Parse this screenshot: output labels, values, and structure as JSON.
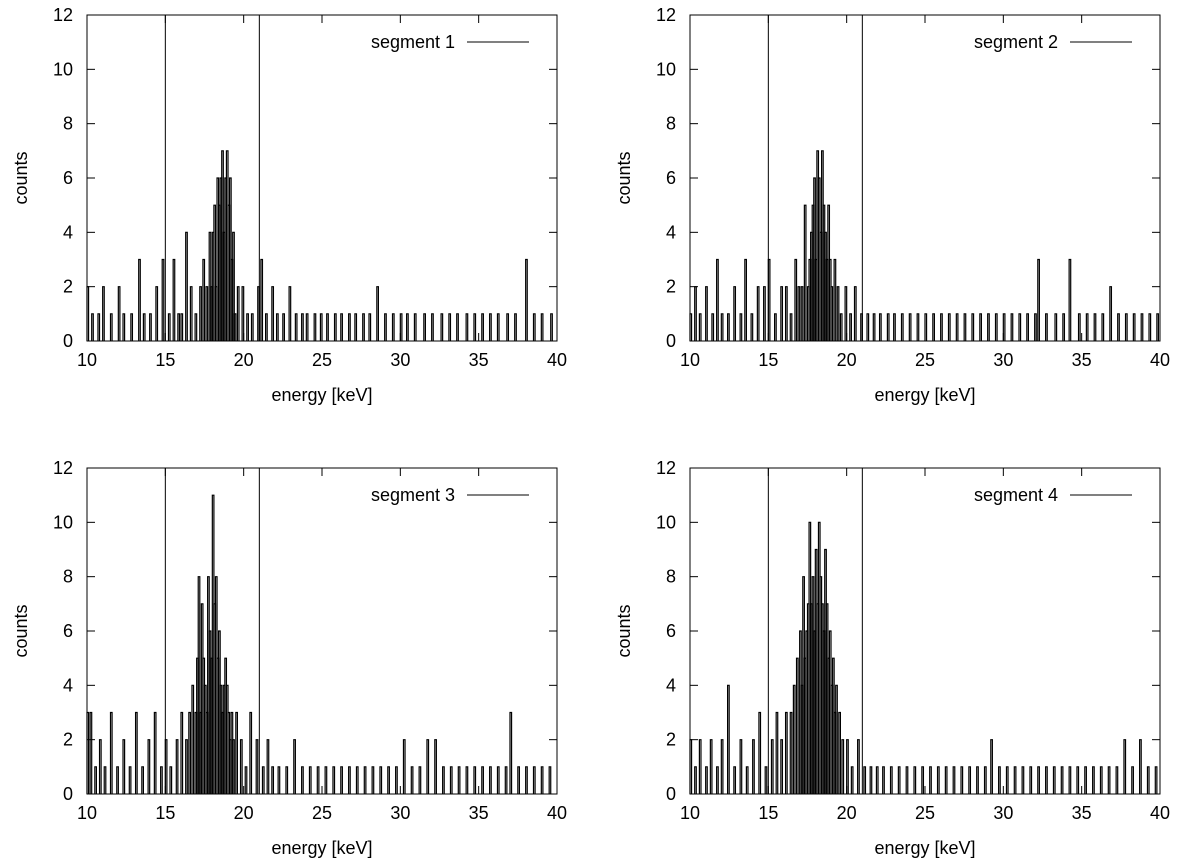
{
  "chart_data": [
    {
      "type": "histogram",
      "panel": "top-left",
      "xlabel": "energy [keV]",
      "ylabel": "counts",
      "xlim": [
        10,
        40
      ],
      "ylim": [
        0,
        12
      ],
      "xticks": [
        10,
        15,
        20,
        25,
        30,
        35,
        40
      ],
      "yticks": [
        0,
        2,
        4,
        6,
        8,
        10,
        12
      ],
      "vlines": [
        15,
        21
      ],
      "legend": "top-right",
      "series": [
        {
          "name": "segment 1",
          "color": "#000000"
        }
      ],
      "x": [
        10.0,
        10.3,
        10.7,
        11.0,
        11.5,
        12.0,
        12.3,
        12.8,
        13.3,
        13.6,
        14.0,
        14.4,
        14.8,
        15.2,
        15.5,
        15.8,
        16.0,
        16.3,
        16.6,
        16.9,
        17.2,
        17.4,
        17.6,
        17.8,
        17.9,
        18.0,
        18.1,
        18.2,
        18.3,
        18.4,
        18.5,
        18.6,
        18.7,
        18.8,
        18.9,
        19.0,
        19.1,
        19.2,
        19.3,
        19.4,
        19.6,
        19.9,
        20.2,
        20.5,
        20.9,
        21.1,
        21.4,
        21.8,
        22.1,
        22.5,
        22.9,
        23.3,
        23.7,
        24.0,
        24.5,
        24.9,
        25.3,
        25.8,
        26.2,
        26.7,
        27.1,
        27.6,
        28.0,
        28.5,
        29.0,
        29.5,
        30.0,
        30.4,
        30.9,
        31.5,
        32.0,
        32.6,
        33.1,
        33.6,
        34.2,
        34.7,
        35.2,
        35.7,
        36.2,
        36.8,
        37.3,
        38.0,
        38.5,
        39.0,
        39.6
      ],
      "counts": [
        2,
        1,
        1,
        2,
        1,
        2,
        1,
        1,
        3,
        1,
        1,
        2,
        3,
        1,
        3,
        1,
        1,
        4,
        2,
        1,
        2,
        3,
        2,
        4,
        2,
        4,
        5,
        2,
        6,
        5,
        6,
        7,
        4,
        6,
        7,
        5,
        6,
        3,
        4,
        1,
        2,
        2,
        1,
        1,
        2,
        3,
        1,
        2,
        1,
        1,
        2,
        1,
        1,
        1,
        1,
        1,
        1,
        1,
        1,
        1,
        1,
        1,
        1,
        2,
        1,
        1,
        1,
        1,
        1,
        1,
        1,
        1,
        1,
        1,
        1,
        1,
        1,
        1,
        1,
        1,
        1,
        3,
        1,
        1,
        1
      ]
    },
    {
      "type": "histogram",
      "panel": "top-right",
      "xlabel": "energy [keV]",
      "ylabel": "counts",
      "xlim": [
        10,
        40
      ],
      "ylim": [
        0,
        12
      ],
      "xticks": [
        10,
        15,
        20,
        25,
        30,
        35,
        40
      ],
      "yticks": [
        0,
        2,
        4,
        6,
        8,
        10,
        12
      ],
      "vlines": [
        15,
        21
      ],
      "legend": "top-right",
      "series": [
        {
          "name": "segment 2",
          "color": "#000000"
        }
      ],
      "x": [
        10.0,
        10.3,
        10.6,
        11.0,
        11.4,
        11.7,
        12.0,
        12.4,
        12.8,
        13.2,
        13.5,
        13.9,
        14.3,
        14.7,
        15.0,
        15.4,
        15.8,
        16.1,
        16.4,
        16.7,
        16.9,
        17.1,
        17.3,
        17.5,
        17.6,
        17.7,
        17.8,
        17.9,
        18.0,
        18.1,
        18.2,
        18.3,
        18.4,
        18.5,
        18.6,
        18.7,
        18.8,
        18.9,
        19.0,
        19.2,
        19.4,
        19.6,
        19.9,
        20.2,
        20.5,
        20.9,
        21.3,
        21.7,
        22.1,
        22.6,
        23.0,
        23.5,
        24.0,
        24.5,
        25.0,
        25.5,
        26.0,
        26.5,
        27.0,
        27.5,
        28.0,
        28.5,
        29.0,
        29.5,
        30.0,
        30.5,
        31.0,
        31.5,
        32.0,
        32.2,
        32.7,
        33.3,
        33.8,
        34.2,
        34.8,
        35.3,
        35.8,
        36.3,
        36.8,
        37.3,
        37.8,
        38.3,
        38.8,
        39.3,
        39.8
      ],
      "counts": [
        1,
        2,
        1,
        2,
        1,
        3,
        1,
        1,
        2,
        1,
        3,
        1,
        2,
        2,
        3,
        1,
        2,
        2,
        1,
        3,
        2,
        2,
        5,
        2,
        3,
        4,
        5,
        6,
        3,
        7,
        6,
        4,
        7,
        5,
        4,
        3,
        5,
        3,
        2,
        3,
        2,
        1,
        2,
        1,
        2,
        1,
        1,
        1,
        1,
        1,
        1,
        1,
        1,
        1,
        1,
        1,
        1,
        1,
        1,
        1,
        1,
        1,
        1,
        1,
        1,
        1,
        1,
        1,
        1,
        3,
        1,
        1,
        1,
        3,
        1,
        1,
        1,
        1,
        2,
        1,
        1,
        1,
        1,
        1,
        1
      ]
    },
    {
      "type": "histogram",
      "panel": "bottom-left",
      "xlabel": "energy [keV]",
      "ylabel": "counts",
      "xlim": [
        10,
        40
      ],
      "ylim": [
        0,
        12
      ],
      "xticks": [
        10,
        15,
        20,
        25,
        30,
        35,
        40
      ],
      "yticks": [
        0,
        2,
        4,
        6,
        8,
        10,
        12
      ],
      "vlines": [
        15,
        21
      ],
      "legend": "top-right",
      "series": [
        {
          "name": "segment 3",
          "color": "#000000"
        }
      ],
      "x": [
        10.0,
        10.2,
        10.5,
        10.8,
        11.1,
        11.5,
        11.9,
        12.3,
        12.7,
        13.1,
        13.5,
        13.9,
        14.3,
        14.7,
        15.0,
        15.3,
        15.7,
        16.0,
        16.3,
        16.5,
        16.7,
        16.9,
        17.0,
        17.1,
        17.2,
        17.3,
        17.4,
        17.5,
        17.6,
        17.7,
        17.8,
        17.9,
        18.0,
        18.1,
        18.2,
        18.3,
        18.4,
        18.5,
        18.6,
        18.7,
        18.8,
        18.9,
        19.0,
        19.1,
        19.2,
        19.3,
        19.5,
        19.8,
        20.1,
        20.4,
        20.8,
        21.2,
        21.5,
        21.8,
        22.2,
        22.7,
        23.2,
        23.7,
        24.2,
        24.7,
        25.2,
        25.7,
        26.2,
        26.7,
        27.2,
        27.7,
        28.2,
        28.7,
        29.2,
        29.7,
        30.2,
        30.7,
        31.2,
        31.7,
        32.2,
        32.7,
        33.2,
        33.7,
        34.2,
        34.7,
        35.2,
        35.7,
        36.2,
        36.7,
        37.0,
        37.5,
        38.0,
        38.5,
        39.0,
        39.5
      ],
      "counts": [
        3,
        3,
        1,
        2,
        1,
        3,
        1,
        2,
        1,
        3,
        1,
        2,
        3,
        1,
        2,
        1,
        2,
        3,
        2,
        3,
        4,
        3,
        5,
        8,
        3,
        7,
        5,
        4,
        3,
        8,
        6,
        5,
        11,
        7,
        8,
        5,
        6,
        4,
        3,
        4,
        5,
        4,
        3,
        2,
        3,
        2,
        3,
        2,
        1,
        3,
        2,
        1,
        2,
        1,
        1,
        1,
        2,
        1,
        1,
        1,
        1,
        1,
        1,
        1,
        1,
        1,
        1,
        1,
        1,
        1,
        2,
        1,
        1,
        2,
        2,
        1,
        1,
        1,
        1,
        1,
        1,
        1,
        1,
        1,
        3,
        1,
        1,
        1,
        1,
        1
      ]
    },
    {
      "type": "histogram",
      "panel": "bottom-right",
      "xlabel": "energy [keV]",
      "ylabel": "counts",
      "xlim": [
        10,
        40
      ],
      "ylim": [
        0,
        12
      ],
      "xticks": [
        10,
        15,
        20,
        25,
        30,
        35,
        40
      ],
      "yticks": [
        0,
        2,
        4,
        6,
        8,
        10,
        12
      ],
      "vlines": [
        15,
        21
      ],
      "legend": "top-right",
      "series": [
        {
          "name": "segment 4",
          "color": "#000000"
        }
      ],
      "x": [
        10.0,
        10.3,
        10.6,
        11.0,
        11.3,
        11.7,
        12.0,
        12.4,
        12.8,
        13.2,
        13.6,
        14.0,
        14.4,
        14.8,
        15.2,
        15.5,
        15.8,
        16.1,
        16.4,
        16.6,
        16.8,
        17.0,
        17.1,
        17.2,
        17.3,
        17.4,
        17.5,
        17.6,
        17.7,
        17.8,
        17.9,
        18.0,
        18.1,
        18.2,
        18.3,
        18.4,
        18.5,
        18.6,
        18.7,
        18.8,
        18.9,
        19.0,
        19.1,
        19.2,
        19.3,
        19.5,
        19.7,
        20.0,
        20.3,
        20.7,
        21.1,
        21.5,
        21.9,
        22.3,
        22.8,
        23.3,
        23.8,
        24.3,
        24.8,
        25.3,
        25.8,
        26.3,
        26.8,
        27.3,
        27.8,
        28.3,
        28.8,
        29.2,
        29.7,
        30.2,
        30.7,
        31.2,
        31.7,
        32.2,
        32.7,
        33.2,
        33.7,
        34.2,
        34.7,
        35.2,
        35.7,
        36.2,
        36.7,
        37.2,
        37.7,
        38.2,
        38.7,
        39.2,
        39.7
      ],
      "counts": [
        2,
        1,
        2,
        1,
        2,
        1,
        2,
        4,
        1,
        2,
        1,
        2,
        3,
        1,
        2,
        3,
        2,
        3,
        3,
        4,
        5,
        6,
        4,
        8,
        5,
        6,
        7,
        10,
        7,
        8,
        6,
        9,
        7,
        10,
        8,
        7,
        6,
        9,
        7,
        5,
        6,
        4,
        5,
        3,
        4,
        3,
        2,
        2,
        1,
        2,
        1,
        1,
        1,
        1,
        1,
        1,
        1,
        1,
        1,
        1,
        1,
        1,
        1,
        1,
        1,
        1,
        1,
        2,
        1,
        1,
        1,
        1,
        1,
        1,
        1,
        1,
        1,
        1,
        1,
        1,
        1,
        1,
        1,
        1,
        2,
        1,
        2,
        1,
        1
      ]
    }
  ]
}
